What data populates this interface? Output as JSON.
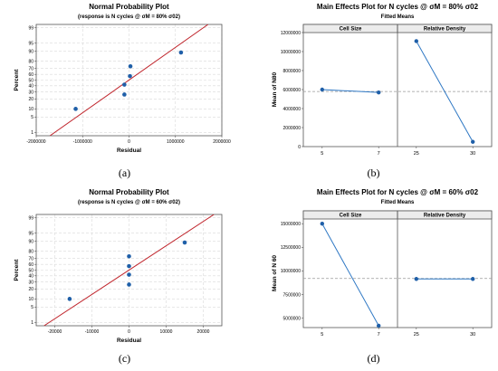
{
  "chart_data": [
    {
      "type": "scatter",
      "panel_label": "(a)",
      "title": "Normal Probability Plot",
      "subtitle": "(response is N cycles @ σM = 80% σ02)",
      "xlabel": "Residual",
      "ylabel": "Percent",
      "xlim": [
        -2000000,
        2000000
      ],
      "x_ticks": [
        -2000000,
        -1000000,
        0,
        1000000,
        2000000
      ],
      "x_tick_labels": [
        "-2000000",
        "-1000000",
        "0",
        "1000000",
        "2000000"
      ],
      "y_ticks": [
        1,
        5,
        10,
        20,
        30,
        40,
        50,
        60,
        70,
        80,
        90,
        95,
        99
      ],
      "y_tick_labels": [
        "1",
        "5",
        "10",
        "20",
        "30",
        "40",
        "50",
        "60",
        "70",
        "80",
        "90",
        "95",
        "99"
      ],
      "y_scale": "normal-probability",
      "grid": true,
      "points": [
        {
          "x": -1150000,
          "y": 10
        },
        {
          "x": -100000,
          "y": 26
        },
        {
          "x": -100000,
          "y": 42
        },
        {
          "x": 20000,
          "y": 57
        },
        {
          "x": 30000,
          "y": 73
        },
        {
          "x": 1120000,
          "y": 89
        }
      ],
      "fit_line": [
        {
          "x": -1600000,
          "y": 1
        },
        {
          "x": 1600000,
          "y": 99
        }
      ],
      "colors": {
        "points": "#1f5fa8",
        "line": "#c0262d",
        "grid": "#d9d9d9"
      }
    },
    {
      "type": "line",
      "panel_label": "(b)",
      "title": "Main Effects Plot for  N cycles @ σM = 80% σ02",
      "subtitle": "Fitted Means",
      "ylabel": "Mean of N80",
      "ylim": [
        0,
        12000000
      ],
      "y_ticks": [
        0,
        2000000,
        4000000,
        6000000,
        8000000,
        10000000,
        12000000
      ],
      "y_tick_labels": [
        "0",
        "2000000",
        "4000000",
        "6000000",
        "8000000",
        "10000000",
        "12000000"
      ],
      "reference_line": 5800000,
      "facets": [
        {
          "name": "Cell Size",
          "categories": [
            "5",
            "7"
          ],
          "values": [
            6000000,
            5700000
          ]
        },
        {
          "name": "Relative Density",
          "categories": [
            "25",
            "30"
          ],
          "values": [
            11100000,
            500000
          ]
        }
      ],
      "colors": {
        "points": "#1f5fa8",
        "line": "#2f78c4",
        "reference": "#999999",
        "header": "#ececec"
      }
    },
    {
      "type": "scatter",
      "panel_label": "(c)",
      "title": "Normal Probability Plot",
      "subtitle": "(response is N cycles @ σM = 60% σ02)",
      "xlabel": "Residual",
      "ylabel": "Percent",
      "xlim": [
        -25000,
        25000
      ],
      "x_ticks": [
        -20000,
        -10000,
        0,
        10000,
        20000
      ],
      "x_tick_labels": [
        "-20000",
        "-10000",
        "0",
        "10000",
        "20000"
      ],
      "y_ticks": [
        1,
        5,
        10,
        20,
        30,
        40,
        50,
        60,
        70,
        80,
        90,
        95,
        99
      ],
      "y_tick_labels": [
        "1",
        "5",
        "10",
        "20",
        "30",
        "40",
        "50",
        "60",
        "70",
        "80",
        "90",
        "95",
        "99"
      ],
      "y_scale": "normal-probability",
      "grid": true,
      "points": [
        {
          "x": -16000,
          "y": 10
        },
        {
          "x": 0,
          "y": 26
        },
        {
          "x": 0,
          "y": 42
        },
        {
          "x": 0,
          "y": 57
        },
        {
          "x": 0,
          "y": 73
        },
        {
          "x": 15000,
          "y": 89
        }
      ],
      "fit_line": [
        {
          "x": -21500,
          "y": 1
        },
        {
          "x": 21500,
          "y": 99
        }
      ],
      "colors": {
        "points": "#1f5fa8",
        "line": "#c0262d",
        "grid": "#d9d9d9"
      }
    },
    {
      "type": "line",
      "panel_label": "(d)",
      "title": "Main Effects Plot for N cycles @ σM = 60% σ02",
      "subtitle": "Fitted Means",
      "ylabel": "Mean of N 60",
      "ylim": [
        4000000,
        15500000
      ],
      "y_ticks": [
        5000000,
        7500000,
        10000000,
        12500000,
        15000000
      ],
      "y_tick_labels": [
        "5000000",
        "7500000",
        "10000000",
        "12500000",
        "15000000"
      ],
      "reference_line": 9200000,
      "facets": [
        {
          "name": "Cell Size",
          "categories": [
            "5",
            "7"
          ],
          "values": [
            15000000,
            4200000
          ]
        },
        {
          "name": "Relative Density",
          "categories": [
            "25",
            "30"
          ],
          "values": [
            9150000,
            9150000
          ]
        }
      ],
      "colors": {
        "points": "#1f5fa8",
        "line": "#2f78c4",
        "reference": "#999999",
        "header": "#ececec"
      }
    }
  ]
}
